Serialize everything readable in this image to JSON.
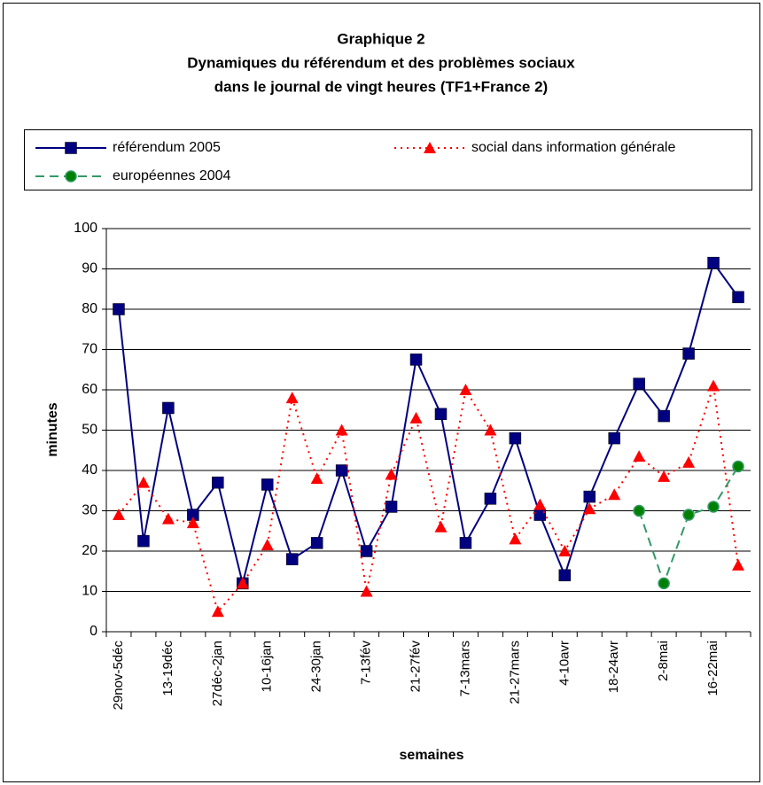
{
  "chart_data": {
    "type": "line",
    "title": [
      "Graphique 2",
      "Dynamiques du référendum et des problèmes sociaux",
      "dans le journal de vingt heures (TF1+France 2)"
    ],
    "x_label": "semaines",
    "y_label": "minutes",
    "categories": [
      "29nov-5déc",
      null,
      "13-19déc",
      null,
      "27déc-2jan",
      null,
      "10-16jan",
      null,
      "24-30jan",
      null,
      "7-13fév",
      null,
      "21-27fév",
      null,
      "7-13mars",
      null,
      "21-27mars",
      null,
      "4-10avr",
      null,
      "18-24avr",
      null,
      "2-8mai",
      null,
      "16-22mai",
      null
    ],
    "series": [
      {
        "name": "référendum 2005",
        "color": "#000080",
        "marker": "square",
        "dash": "solid",
        "values": [
          80,
          22.5,
          55.5,
          29,
          37,
          12,
          36.5,
          18,
          22,
          40,
          20,
          31,
          67.5,
          54,
          22,
          33,
          48,
          29,
          14,
          33.5,
          48,
          61.5,
          53.5,
          69,
          91.5,
          83
        ]
      },
      {
        "name": "social dans information générale",
        "color": "#ff0000",
        "marker": "triangle",
        "dash": "dotted",
        "values": [
          29,
          37,
          28,
          27,
          5,
          12,
          21.5,
          58,
          38,
          50,
          10,
          39,
          53,
          26,
          60,
          50,
          23,
          31.5,
          20,
          30.5,
          34,
          43.5,
          38.5,
          42,
          61,
          16.5
        ]
      },
      {
        "name": "européennes 2004",
        "color": "#339966",
        "marker": "circle",
        "dash": "dashed",
        "values": [
          null,
          null,
          null,
          null,
          null,
          null,
          null,
          null,
          null,
          null,
          null,
          null,
          null,
          null,
          null,
          null,
          null,
          null,
          null,
          null,
          null,
          30,
          12,
          29,
          31,
          41
        ]
      }
    ],
    "ylim": [
      0,
      100
    ],
    "yticks": [
      0,
      10,
      20,
      30,
      40,
      50,
      60,
      70,
      80,
      90,
      100
    ],
    "grid": true,
    "legend": "top"
  }
}
